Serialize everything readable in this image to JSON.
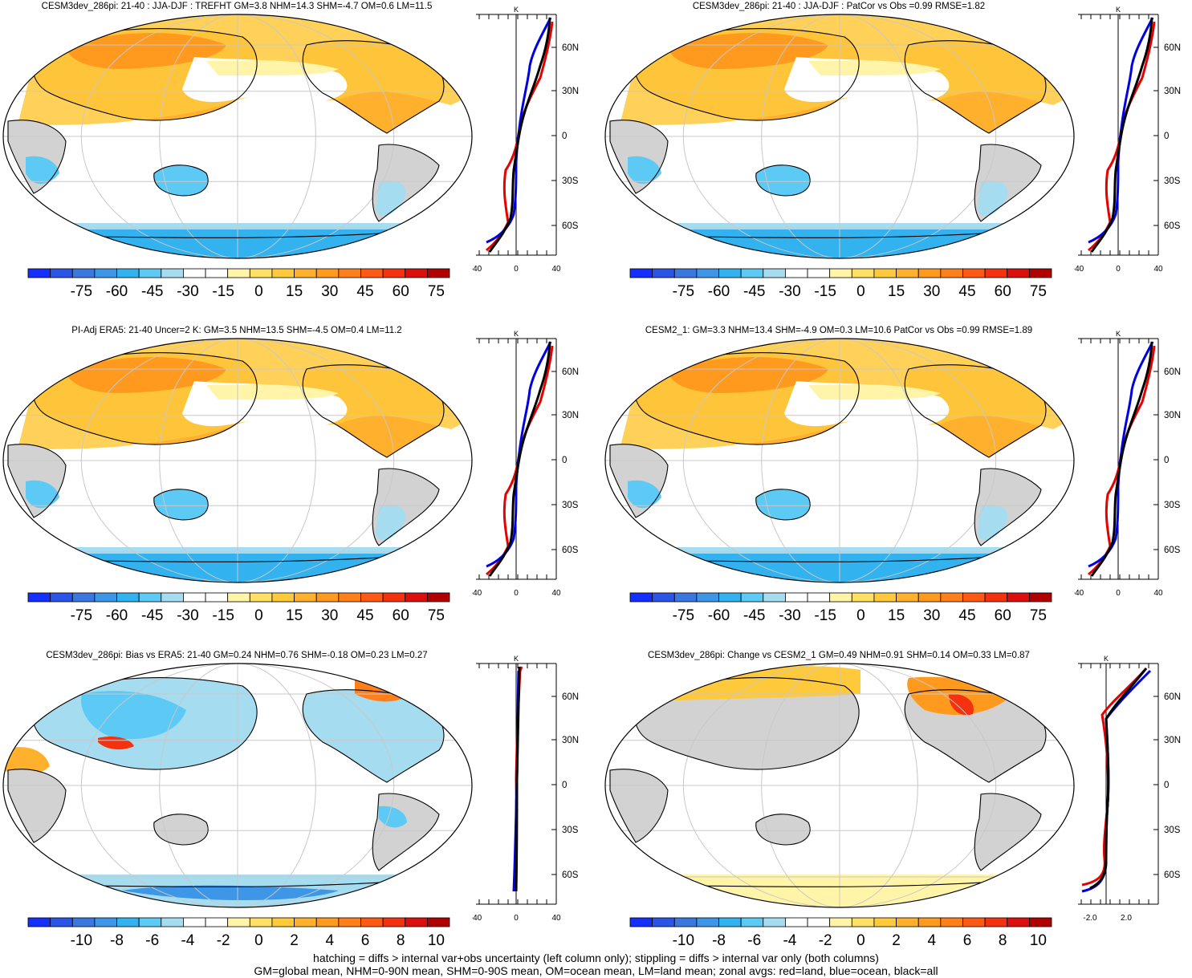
{
  "panels": [
    {
      "id": "p1",
      "title": "CESM3dev_286pi: 21-40 : JJA-DJF : TREFHT GM=3.8 NHM=14.3 SHM=-4.7 OM=0.6 LM=11.5",
      "cbar_labels": [
        "-75",
        "-60",
        "-45",
        "-30",
        "-15",
        "0",
        "15",
        "30",
        "45",
        "60",
        "75"
      ],
      "zonal_xticks": [
        "-40",
        "0",
        "40"
      ],
      "zonal_unit": "K",
      "lat_labels": [
        "60N",
        "30N",
        "0",
        "30S",
        "60S"
      ]
    },
    {
      "id": "p2",
      "title": "CESM3dev_286pi: 21-40 : JJA-DJF : PatCor vs Obs =0.99 RMSE=1.82",
      "cbar_labels": [
        "-75",
        "-60",
        "-45",
        "-30",
        "-15",
        "0",
        "15",
        "30",
        "45",
        "60",
        "75"
      ],
      "zonal_xticks": [
        "-40",
        "0",
        "40"
      ],
      "zonal_unit": "K",
      "lat_labels": [
        "60N",
        "30N",
        "0",
        "30S",
        "60S"
      ]
    },
    {
      "id": "p3",
      "title": "PI-Adj ERA5: 21-40 Uncer=2 K: GM=3.5 NHM=13.5 SHM=-4.5 OM=0.4 LM=11.2",
      "cbar_labels": [
        "-75",
        "-60",
        "-45",
        "-30",
        "-15",
        "0",
        "15",
        "30",
        "45",
        "60",
        "75"
      ],
      "zonal_xticks": [
        "-40",
        "0",
        "40"
      ],
      "zonal_unit": "K",
      "lat_labels": [
        "60N",
        "30N",
        "0",
        "30S",
        "60S"
      ]
    },
    {
      "id": "p4",
      "title": "CESM2_1: GM=3.3 NHM=13.4 SHM=-4.9 OM=0.3 LM=10.6 PatCor vs Obs =0.99 RMSE=1.89",
      "cbar_labels": [
        "-75",
        "-60",
        "-45",
        "-30",
        "-15",
        "0",
        "15",
        "30",
        "45",
        "60",
        "75"
      ],
      "zonal_xticks": [
        "-40",
        "0",
        "40"
      ],
      "zonal_unit": "K",
      "lat_labels": [
        "60N",
        "30N",
        "0",
        "30S",
        "60S"
      ]
    },
    {
      "id": "p5",
      "title": "CESM3dev_286pi: Bias vs ERA5: 21-40 GM=0.24 NHM=0.76 SHM=-0.18 OM=0.23 LM=0.27",
      "cbar_labels": [
        "-10",
        "-8",
        "-6",
        "-4",
        "-2",
        "0",
        "2",
        "4",
        "6",
        "8",
        "10"
      ],
      "zonal_xticks": [
        "-40",
        "0",
        "40"
      ],
      "zonal_unit": "K",
      "lat_labels": [
        "60N",
        "30N",
        "0",
        "30S",
        "60S"
      ]
    },
    {
      "id": "p6",
      "title": "CESM3dev_286pi: Change vs CESM2_1 GM=0.49 NHM=0.91 SHM=0.14 OM=0.33 LM=0.87",
      "cbar_labels": [
        "-10",
        "-8",
        "-6",
        "-4",
        "-2",
        "0",
        "2",
        "4",
        "6",
        "8",
        "10"
      ],
      "zonal_xticks": [
        "-2.0",
        "2.0"
      ],
      "zonal_unit": "K",
      "lat_labels": [
        "60N",
        "30N",
        "0",
        "30S",
        "60S"
      ]
    }
  ],
  "colorbar_colors": [
    "#1430ff",
    "#2a55e6",
    "#3a78e0",
    "#3d96e6",
    "#32b2ee",
    "#5ccaf5",
    "#a5dcf0",
    "#ffffff",
    "#ffffff",
    "#fff4a8",
    "#ffe066",
    "#ffc93c",
    "#ffb12e",
    "#ff9a1f",
    "#ff7f1a",
    "#ff5a14",
    "#f5320f",
    "#dc0f0f",
    "#b00000"
  ],
  "colors": {
    "land_missing": "#d2d2d2",
    "zonal_land": "#e60000",
    "zonal_ocean": "#0000e6",
    "zonal_all": "#000000"
  },
  "footer": {
    "line1": "hatching = diffs > internal var+obs uncertainty (left column only); stippling = diffs > internal var only (both columns)",
    "line2": "GM=global mean, NHM=0-90N mean, SHM=0-90S mean, OM=ocean mean, LM=land mean; zonal avgs: red=land, blue=ocean, black=all"
  }
}
